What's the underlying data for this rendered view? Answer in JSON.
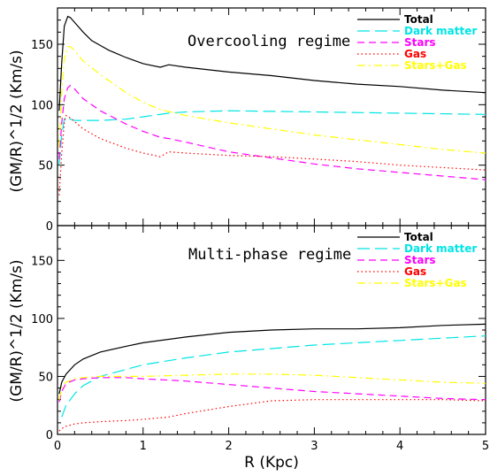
{
  "chart_data": {
    "type": "line",
    "xlabel": "R (Kpc)",
    "ylabel": "(GM/R)^1/2 (Km/s)",
    "xlim": [
      0,
      5
    ],
    "ylim": [
      0,
      180
    ],
    "x_ticks": [
      "0",
      "1",
      "2",
      "3",
      "4",
      "5"
    ],
    "y_ticks": [
      "0",
      "50",
      "100",
      "150"
    ],
    "panels": [
      {
        "title": "Overcooling regime",
        "series": [
          {
            "name": "Total",
            "color": "#000000",
            "dash": "solid",
            "x": [
              0.02,
              0.05,
              0.08,
              0.12,
              0.15,
              0.2,
              0.3,
              0.4,
              0.5,
              0.6,
              0.8,
              1.0,
              1.2,
              1.3,
              1.5,
              2.0,
              2.5,
              3.0,
              3.5,
              4.0,
              4.5,
              5.0
            ],
            "y": [
              95,
              135,
              165,
              173,
              172,
              168,
              160,
              153,
              149,
              145,
              139,
              134,
              131,
              133,
              131,
              127,
              124,
              120,
              117,
              115,
              112,
              110
            ]
          },
          {
            "name": "Dark matter",
            "color": "#00e5e5",
            "dash": "long",
            "x": [
              0.02,
              0.05,
              0.08,
              0.1,
              0.15,
              0.2,
              0.3,
              0.5,
              0.8,
              1.0,
              1.3,
              1.5,
              2.0,
              3.0,
              4.0,
              5.0
            ],
            "y": [
              50,
              75,
              88,
              90,
              88,
              87,
              87,
              87,
              88,
              90,
              93,
              94,
              95,
              94,
              93,
              92
            ]
          },
          {
            "name": "Stars",
            "color": "#ff00ff",
            "dash": "dashed",
            "x": [
              0.02,
              0.05,
              0.08,
              0.12,
              0.15,
              0.2,
              0.3,
              0.5,
              0.8,
              1.0,
              1.2,
              1.3,
              1.5,
              2.0,
              2.5,
              3.0,
              3.5,
              4.0,
              4.5,
              5.0
            ],
            "y": [
              55,
              85,
              105,
              114,
              116,
              113,
              105,
              95,
              84,
              78,
              73,
              72,
              69,
              61,
              56,
              51,
              47,
              44,
              41,
              38
            ]
          },
          {
            "name": "Gas",
            "color": "#ff0000",
            "dash": "dotted",
            "x": [
              0.02,
              0.05,
              0.08,
              0.1,
              0.15,
              0.2,
              0.3,
              0.5,
              0.8,
              1.0,
              1.2,
              1.3,
              1.5,
              2.0,
              2.5,
              3.0,
              3.5,
              4.0,
              4.5,
              5.0
            ],
            "y": [
              25,
              60,
              85,
              91,
              89,
              86,
              80,
              72,
              64,
              60,
              57,
              61,
              60,
              58,
              57,
              55,
              53,
              50,
              48,
              46
            ]
          },
          {
            "name": "Stars+Gas",
            "color": "#ffff00",
            "dash": "dashdot",
            "x": [
              0.02,
              0.05,
              0.08,
              0.12,
              0.15,
              0.2,
              0.3,
              0.5,
              0.8,
              1.0,
              1.2,
              1.5,
              2.0,
              2.5,
              3.0,
              3.5,
              4.0,
              4.5,
              5.0
            ],
            "y": [
              65,
              110,
              138,
              148,
              148,
              145,
              136,
              125,
              110,
              102,
              96,
              91,
              85,
              80,
              75,
              71,
              67,
              63,
              60
            ]
          }
        ]
      },
      {
        "title": "Multi-phase regime",
        "series": [
          {
            "name": "Total",
            "color": "#000000",
            "dash": "solid",
            "x": [
              0.02,
              0.05,
              0.1,
              0.2,
              0.3,
              0.5,
              0.8,
              1.0,
              1.5,
              2.0,
              2.5,
              3.0,
              3.5,
              4.0,
              4.5,
              5.0
            ],
            "y": [
              35,
              45,
              52,
              60,
              65,
              71,
              76,
              79,
              84,
              88,
              90,
              91,
              91,
              92,
              94,
              95
            ]
          },
          {
            "name": "Dark matter",
            "color": "#00e5e5",
            "dash": "long",
            "x": [
              0.05,
              0.1,
              0.2,
              0.3,
              0.5,
              0.8,
              1.0,
              1.5,
              2.0,
              2.5,
              3.0,
              3.5,
              4.0,
              4.5,
              5.0
            ],
            "y": [
              15,
              25,
              35,
              42,
              50,
              56,
              60,
              66,
              71,
              74,
              77,
              79,
              81,
              83,
              85
            ]
          },
          {
            "name": "Stars",
            "color": "#ff00ff",
            "dash": "dashed",
            "x": [
              0.02,
              0.05,
              0.1,
              0.2,
              0.3,
              0.5,
              0.8,
              1.0,
              1.5,
              2.0,
              2.5,
              3.0,
              3.5,
              4.0,
              4.5,
              5.0
            ],
            "y": [
              28,
              37,
              44,
              47,
              48,
              49,
              49,
              48,
              46,
              43,
              40,
              37,
              35,
              33,
              31,
              30
            ]
          },
          {
            "name": "Gas",
            "color": "#ff0000",
            "dash": "dotted",
            "x": [
              0.02,
              0.05,
              0.1,
              0.2,
              0.3,
              0.5,
              0.8,
              1.0,
              1.3,
              1.5,
              2.0,
              2.5,
              3.0,
              3.5,
              4.0,
              4.5,
              5.0
            ],
            "y": [
              3,
              5,
              7,
              9,
              10,
              11,
              12,
              13,
              15,
              18,
              24,
              29,
              30,
              30,
              30,
              30,
              29
            ]
          },
          {
            "name": "Stars+Gas",
            "color": "#ffff00",
            "dash": "dashdot",
            "x": [
              0.02,
              0.05,
              0.1,
              0.2,
              0.3,
              0.5,
              0.8,
              1.0,
              1.5,
              2.0,
              2.5,
              3.0,
              3.5,
              4.0,
              4.5,
              5.0
            ],
            "y": [
              30,
              40,
              45,
              48,
              49,
              50,
              50,
              50,
              51,
              52,
              52,
              51,
              49,
              47,
              45,
              44
            ]
          }
        ]
      }
    ]
  }
}
